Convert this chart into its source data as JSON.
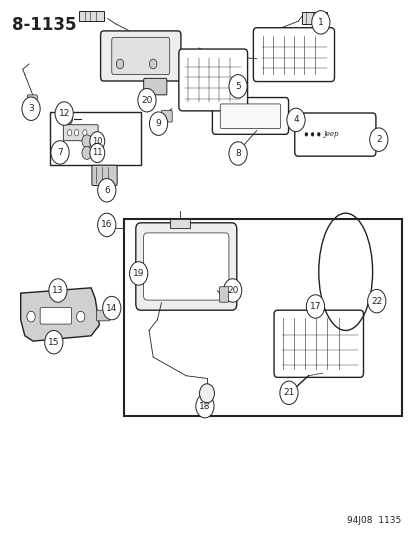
{
  "title": "8-1135",
  "footer": "94J08  1135",
  "bg_color": "#ffffff",
  "line_color": "#222222",
  "figsize": [
    4.14,
    5.33
  ],
  "dpi": 100
}
